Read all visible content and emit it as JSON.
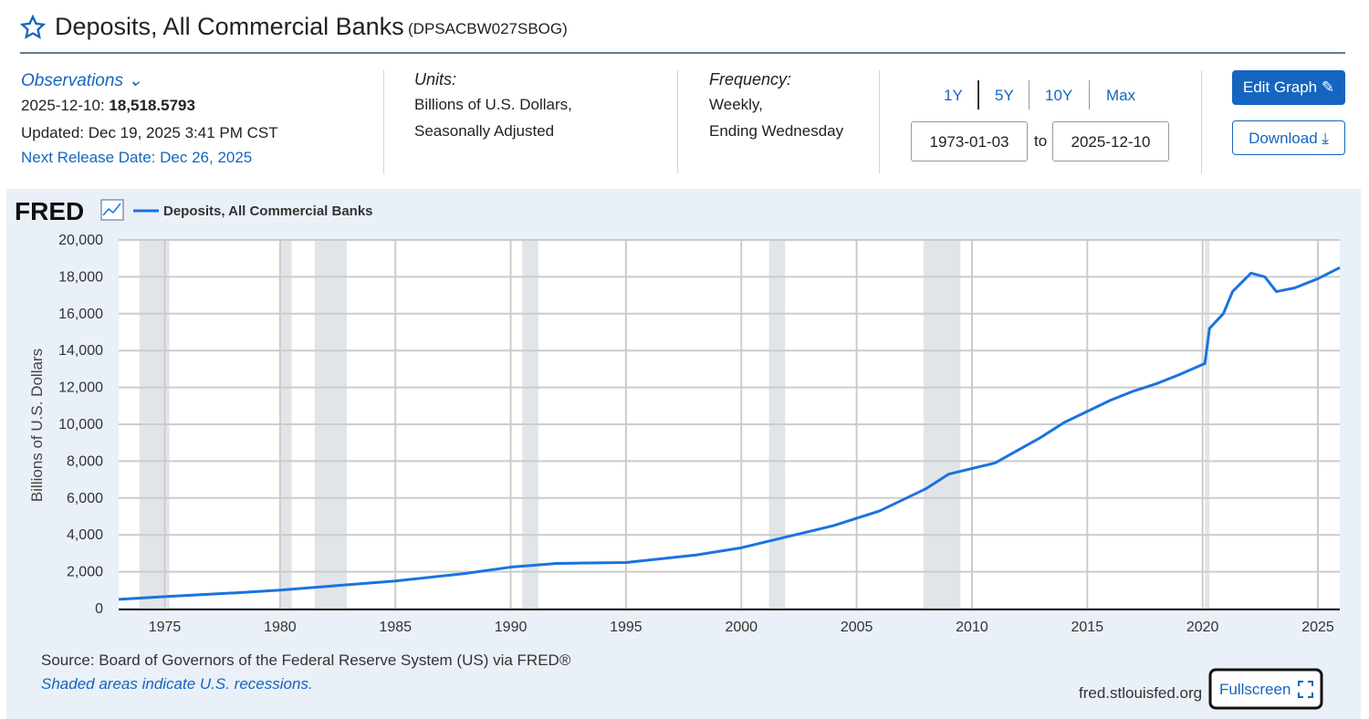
{
  "header": {
    "title": "Deposits, All Commercial Banks",
    "series_id": "(DPSACBW027SBOG)"
  },
  "observations": {
    "label": "Observations",
    "date": "2025-12-10:",
    "value": "18,518.5793",
    "updated": "Updated: Dec 19, 2025 3:41 PM CST",
    "next_release": "Next Release Date: Dec 26, 2025"
  },
  "units": {
    "label": "Units:",
    "lines": [
      "Billions of U.S. Dollars,",
      "Seasonally Adjusted"
    ]
  },
  "frequency": {
    "label": "Frequency:",
    "lines": [
      "Weekly,",
      "Ending Wednesday"
    ]
  },
  "range": {
    "buttons": [
      "1Y",
      "5Y",
      "10Y",
      "Max"
    ],
    "start": "1973-01-03",
    "to": "to",
    "end": "2025-12-10"
  },
  "actions": {
    "edit": "Edit Graph",
    "download": "Download"
  },
  "chart_data": {
    "type": "line",
    "logo": "FRED",
    "y_label": "Billions of U.S. Dollars",
    "x": [
      1973.0,
      1975,
      1978,
      1980,
      1982,
      1985,
      1988,
      1990,
      1992,
      1995,
      1998,
      2000,
      2002,
      2004,
      2006,
      2008,
      2009,
      2010,
      2011,
      2012,
      2013,
      2014,
      2015,
      2016,
      2017,
      2018,
      2019,
      2020.1,
      2020.3,
      2020.9,
      2021.3,
      2022.1,
      2022.7,
      2023.2,
      2024,
      2025,
      2025.95
    ],
    "series": [
      {
        "name": "Deposits, All Commercial Banks",
        "color": "#1a73e0",
        "values": [
          500,
          650,
          850,
          1000,
          1200,
          1500,
          1900,
          2250,
          2450,
          2500,
          2900,
          3300,
          3900,
          4500,
          5300,
          6500,
          7300,
          7600,
          7900,
          8600,
          9300,
          10100,
          10700,
          11300,
          11800,
          12200,
          12700,
          13300,
          15200,
          16000,
          17200,
          18200,
          18000,
          17200,
          17400,
          17900,
          18500
        ]
      }
    ],
    "recessions": [
      [
        1973.9,
        1975.2
      ],
      [
        1980.0,
        1980.5
      ],
      [
        1981.5,
        1982.9
      ],
      [
        1990.5,
        1991.2
      ],
      [
        2001.2,
        2001.9
      ],
      [
        2007.9,
        2009.5
      ],
      [
        2020.1,
        2020.3
      ]
    ],
    "xlim": [
      1973.0,
      2025.95
    ],
    "ylim": [
      0,
      20000
    ],
    "xticks": [
      1975,
      1980,
      1985,
      1990,
      1995,
      2000,
      2005,
      2010,
      2015,
      2020,
      2025
    ],
    "yticks": [
      0,
      {
        "value": 2000,
        "label": "2,000"
      },
      {
        "value": 4000,
        "label": "4,000"
      },
      {
        "value": 6000,
        "label": "6,000"
      },
      {
        "value": 8000,
        "label": "8,000"
      },
      {
        "value": 10000,
        "label": "10,000"
      },
      {
        "value": 12000,
        "label": "12,000"
      },
      {
        "value": 14000,
        "label": "14,000"
      },
      {
        "value": 16000,
        "label": "16,000"
      },
      {
        "value": 18000,
        "label": "18,000"
      },
      {
        "value": 20000,
        "label": "20,000"
      }
    ],
    "grid": true,
    "source": "Source: Board of Governors of the Federal Reserve System (US) via FRED®",
    "note": "Shaded areas indicate U.S. recessions.",
    "site": "fred.stlouisfed.org",
    "fullscreen": "Fullscreen"
  }
}
